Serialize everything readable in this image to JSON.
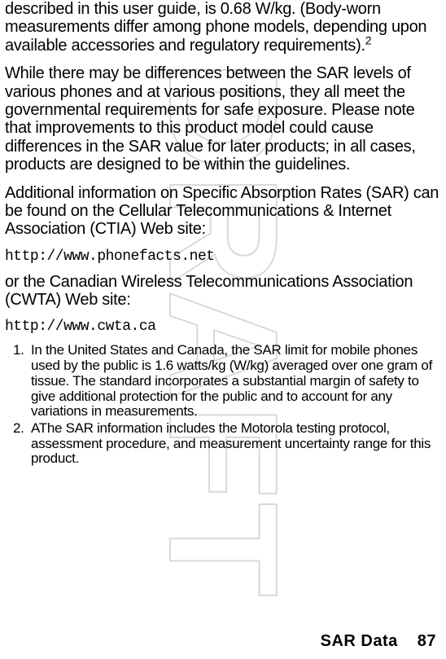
{
  "watermark": "DRAFT",
  "para1": "described in this user guide, is 0.68 W/kg. (Body-worn measurements differ among phone models, depending upon available accessories and regulatory requirements).",
  "para1_sup": "2",
  "para2": "While there may be differences between the SAR levels of various phones and at various positions, they all meet the governmental requirements for safe exposure. Please note that improvements to this product model could cause differences in the SAR value for later products; in all cases, products are designed to be within the guidelines.",
  "para3": "Additional information on Specific Absorption Rates (SAR) can be found on the Cellular Telecommunications & Internet Association (CTIA) Web site:",
  "url1": "http://www.phonefacts.net",
  "para4": "or the Canadian Wireless Telecommunications Association (CWTA) Web site:",
  "url2": "http://www.cwta.ca",
  "note1": "In the United States and Canada, the SAR limit for mobile phones used by the public is 1.6 watts/kg (W/kg) averaged over one gram of tissue. The standard incorporates a substantial margin of safety to give additional protection for the public and to account for any variations in measurements.",
  "note2": "AThe SAR information includes the Motorola testing protocol, assessment procedure, and measurement uncertainty range for this product.",
  "footer_label": "SAR Data",
  "footer_page": "87"
}
